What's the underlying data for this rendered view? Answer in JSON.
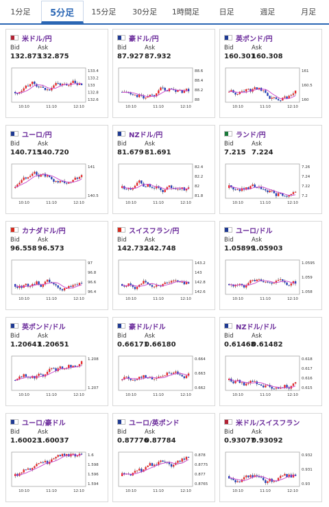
{
  "tabs": [
    "1分足",
    "5分足",
    "15分足",
    "30分足",
    "1時間足",
    "日足",
    "週足",
    "月足"
  ],
  "active_tab": 1,
  "labels": {
    "bid": "Bid",
    "ask": "Ask"
  },
  "cards": [
    {
      "pair": "米ドル/円",
      "flag": "us-jp",
      "bid": "132.873",
      "ask": "132.875",
      "yticks": [
        "133.4",
        "133.2",
        "133",
        "132.8",
        "132.6"
      ],
      "xticks": [
        "10:10",
        "11:10",
        "12:10"
      ]
    },
    {
      "pair": "豪ドル/円",
      "flag": "au-jp",
      "bid": "87.927",
      "ask": "87.932",
      "yticks": [
        "88.6",
        "88.4",
        "88.2",
        "88"
      ],
      "xticks": [
        "10:10",
        "11:10",
        "12:10"
      ]
    },
    {
      "pair": "英ポンド/円",
      "flag": "gb-jp",
      "bid": "160.301",
      "ask": "160.308",
      "yticks": [
        "161",
        "160.5",
        "160"
      ],
      "xticks": [
        "10:10",
        "11:10",
        "12:10"
      ]
    },
    {
      "pair": "ユーロ/円",
      "flag": "eu-jp",
      "bid": "140.715",
      "ask": "140.720",
      "yticks": [
        "141",
        "140.5"
      ],
      "xticks": [
        "10:10",
        "11:10",
        "12:10"
      ]
    },
    {
      "pair": "NZドル/円",
      "flag": "nz-jp",
      "bid": "81.679",
      "ask": "81.691",
      "yticks": [
        "82.4",
        "82.2",
        "82",
        "81.8"
      ],
      "xticks": [
        "10:10",
        "11:10",
        "12:10"
      ]
    },
    {
      "pair": "ランド/円",
      "flag": "za-jp",
      "bid": "7.215",
      "ask": "7.224",
      "yticks": [
        "7.26",
        "7.24",
        "7.22",
        "7.2"
      ],
      "xticks": [
        "10:10",
        "11:10",
        "12:10"
      ]
    },
    {
      "pair": "カナダドル/円",
      "flag": "ca-jp",
      "bid": "96.558",
      "ask": "96.573",
      "yticks": [
        "97",
        "96.8",
        "96.6",
        "96.4"
      ],
      "xticks": [
        "10:10",
        "11:10",
        "12:10"
      ]
    },
    {
      "pair": "スイスフラン/円",
      "flag": "ch-jp",
      "bid": "142.732",
      "ask": "142.748",
      "yticks": [
        "143.2",
        "143",
        "142.8",
        "142.6"
      ],
      "xticks": [
        "10:10",
        "11:10",
        "12:10"
      ]
    },
    {
      "pair": "ユーロ/ドル",
      "flag": "eu-us",
      "bid": "1.05899",
      "ask": "1.05903",
      "yticks": [
        "1.0595",
        "1.059",
        "1.058"
      ],
      "xticks": [
        "10:10",
        "11:10",
        "12:10"
      ]
    },
    {
      "pair": "英ポンド/ドル",
      "flag": "gb-us",
      "bid": "1.20641",
      "ask": "1.20651",
      "yticks": [
        "1.208",
        "1.207"
      ],
      "xticks": [
        "10:10",
        "11:10",
        "12:10"
      ]
    },
    {
      "pair": "豪ドル/ドル",
      "flag": "au-us",
      "bid": "0.66171",
      "ask": "0.66180",
      "yticks": [
        "0.664",
        "0.663",
        "0.662"
      ],
      "xticks": [
        "10:10",
        "11:10",
        "12:10"
      ]
    },
    {
      "pair": "NZドル/ドル",
      "flag": "nz-us",
      "bid": "0.61468",
      "ask": "0.61482",
      "yticks": [
        "0.618",
        "0.617",
        "0.616",
        "0.615"
      ],
      "xticks": [
        "10:10",
        "11:10",
        "12:10"
      ]
    },
    {
      "pair": "ユーロ/豪ドル",
      "flag": "eu-au",
      "bid": "1.60023",
      "ask": "1.60037",
      "yticks": [
        "1.6",
        "1.598",
        "1.596",
        "1.594"
      ],
      "xticks": [
        "10:10",
        "11:10",
        "12:10"
      ]
    },
    {
      "pair": "ユーロ/英ポンド",
      "flag": "eu-gb",
      "bid": "0.87776",
      "ask": "0.87784",
      "yticks": [
        "0.878",
        "0.8775",
        "0.877",
        "0.8765"
      ],
      "xticks": [
        "10:10",
        "11:10",
        "12:10"
      ]
    },
    {
      "pair": "米ドル/スイスフラン",
      "flag": "us-ch",
      "bid": "0.93077",
      "ask": "0.93092",
      "yticks": [
        "0.932",
        "0.931",
        "0.93"
      ],
      "xticks": [
        "10:10",
        "11:10",
        "12:10"
      ]
    }
  ],
  "colors": {
    "up": "#e8282a",
    "down": "#2240b8",
    "ma": "#c83cc8",
    "accent": "#2a66b4"
  }
}
